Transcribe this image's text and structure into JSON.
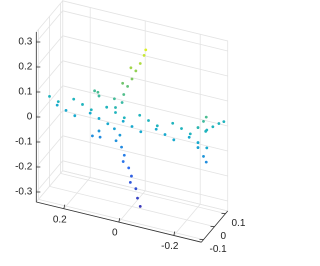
{
  "chart_data": {
    "type": "scatter3d",
    "colormap": "parula",
    "grid": true,
    "xlim": [
      -0.3,
      0.3
    ],
    "ylim": [
      -0.12,
      0.12
    ],
    "zlim": [
      -0.34,
      0.34
    ],
    "xticks": [
      -0.2,
      0,
      0.2
    ],
    "yticks": [
      -0.1,
      0,
      0.1
    ],
    "zticks": [
      -0.3,
      -0.2,
      -0.1,
      0,
      0.1,
      0.2,
      0.3
    ],
    "x": [
      0.3,
      0.28,
      0.26,
      0.24,
      0.22,
      0.2,
      0.18,
      0.16,
      0.14,
      0.12,
      0.1,
      0.08,
      0.06,
      0.04,
      0.02,
      0,
      -0.02,
      -0.04,
      -0.06,
      -0.08,
      -0.1,
      -0.12,
      -0.14,
      -0.16,
      -0.18,
      -0.2,
      -0.22,
      -0.24,
      -0.26,
      -0.28,
      0.06,
      0.04,
      0.06,
      0.03,
      0.02,
      0.03,
      0,
      -0.01,
      0,
      -0.03,
      -0.04,
      -0.05,
      0.06,
      0.04,
      0.05,
      0.03,
      0.02,
      0.02,
      0,
      -0.01,
      -0.01,
      -0.03,
      -0.04,
      -0.05,
      0.12,
      0.14,
      0.12,
      0.12,
      0.14,
      0.12,
      -0.24,
      -0.26,
      -0.27,
      -0.24,
      -0.26,
      -0.27,
      -0.26,
      -0.27,
      -0.28,
      -0.29
    ],
    "y": [
      0,
      0.02,
      -0.02,
      0,
      0.02,
      -0.02,
      0,
      0.02,
      -0.02,
      0,
      0.02,
      -0.02,
      0,
      0.02,
      -0.02,
      0,
      0.02,
      -0.02,
      0,
      0.02,
      -0.02,
      0,
      0.02,
      -0.02,
      0,
      0.02,
      -0.02,
      0,
      0.02,
      -0.02,
      0,
      0.01,
      -0.01,
      0,
      0.01,
      -0.01,
      0,
      0.01,
      -0.01,
      0,
      0.01,
      0,
      -0.01,
      -0.01,
      -0.02,
      -0.02,
      -0.02,
      -0.03,
      -0.03,
      -0.03,
      -0.04,
      -0.04,
      -0.05,
      -0.05,
      0,
      0.01,
      -0.01,
      0,
      -0.01,
      0.01,
      0,
      0,
      0,
      0,
      0,
      0,
      0.03,
      0.06,
      0.09,
      0.11
    ],
    "z": [
      0.02,
      -0.02,
      0.02,
      -0.02,
      0.02,
      -0.02,
      0.02,
      -0.02,
      0.02,
      -0.02,
      0.02,
      -0.02,
      0.02,
      -0.02,
      0.02,
      -0.02,
      0.02,
      -0.02,
      0.02,
      -0.02,
      0.02,
      -0.02,
      0.02,
      -0.02,
      0.02,
      -0.02,
      0.02,
      -0.02,
      0.02,
      -0.02,
      0.04,
      0.06,
      0.08,
      0.1,
      0.13,
      0.15,
      0.17,
      0.2,
      0.22,
      0.24,
      0.27,
      0.3,
      -0.04,
      -0.06,
      -0.08,
      -0.1,
      -0.13,
      -0.15,
      -0.17,
      -0.2,
      -0.22,
      -0.24,
      -0.27,
      -0.3,
      0.07,
      0.08,
      0.09,
      -0.07,
      -0.09,
      -0.1,
      0.04,
      0.07,
      0.09,
      -0.04,
      -0.07,
      -0.09,
      0.02,
      0.02,
      0.02,
      0.02
    ]
  }
}
